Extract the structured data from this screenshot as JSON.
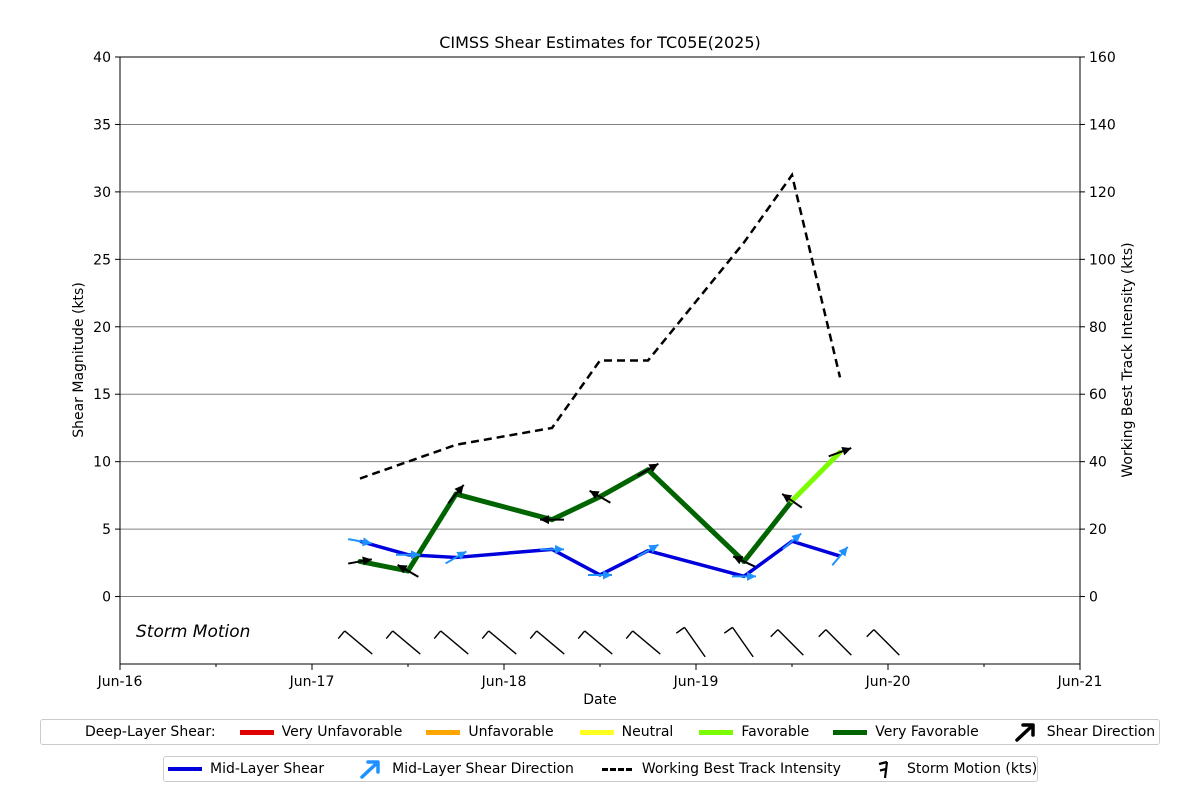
{
  "chart_data": {
    "type": "line",
    "title": "CIMSS Shear Estimates for TC05E(2025)",
    "xlabel": "Date",
    "ylabel": "Shear Magnitude (kts)",
    "y2label": "Working Best Track Intensity (kts)",
    "x_ticks": [
      "Jun-16",
      "Jun-17",
      "Jun-18",
      "Jun-19",
      "Jun-20",
      "Jun-21"
    ],
    "x_range": [
      "Jun-16",
      "Jun-21"
    ],
    "ylim": [
      -5,
      40
    ],
    "y_ticks": [
      0,
      5,
      10,
      15,
      20,
      25,
      30,
      35,
      40
    ],
    "y2lim": [
      -20,
      160
    ],
    "y2_ticks": [
      0,
      20,
      40,
      60,
      80,
      100,
      120,
      140,
      160
    ],
    "grid": "horizontal",
    "annotation": "Storm Motion",
    "times": [
      "Jun-17 06",
      "Jun-17 12",
      "Jun-17 18",
      "Jun-18 06",
      "Jun-18 12",
      "Jun-18 18",
      "Jun-19 06",
      "Jun-19 12",
      "Jun-19 18"
    ],
    "series": [
      {
        "name": "Deep-Layer Shear",
        "values": [
          2.6,
          1.9,
          7.6,
          5.7,
          7.4,
          9.4,
          2.6,
          7.1,
          10.7
        ],
        "segment_ratings": [
          "Very Favorable",
          "Very Favorable",
          "Very Favorable",
          "Very Favorable",
          "Very Favorable",
          "Very Favorable",
          "Very Favorable",
          "Favorable"
        ],
        "direction_deg": [
          80,
          300,
          40,
          270,
          300,
          60,
          295,
          305,
          70
        ]
      },
      {
        "name": "Mid-Layer Shear",
        "values": [
          4.1,
          3.1,
          2.9,
          3.5,
          1.6,
          3.4,
          1.5,
          4.1,
          3.0
        ],
        "direction_deg": [
          100,
          90,
          60,
          90,
          90,
          60,
          90,
          50,
          40
        ]
      },
      {
        "name": "Working Best Track Intensity",
        "axis": "right",
        "x": [
          "Jun-17 06",
          "Jun-17 18",
          "Jun-18 06",
          "Jun-18 12",
          "Jun-18 18",
          "Jun-19 06",
          "Jun-19 12",
          "Jun-19 18"
        ],
        "values": [
          35,
          45,
          50,
          70,
          70,
          105,
          125,
          65
        ]
      },
      {
        "name": "Storm Motion (kts)",
        "x": [
          "Jun-17 06",
          "Jun-17 12",
          "Jun-17 18",
          "Jun-18",
          "Jun-18 06",
          "Jun-18 12",
          "Jun-18 18",
          "Jun-19",
          "Jun-19 06",
          "Jun-19 12",
          "Jun-19 18",
          "Jun-20"
        ],
        "direction_deg": [
          310,
          310,
          310,
          310,
          310,
          310,
          310,
          325,
          325,
          315,
          315,
          315
        ],
        "speed_kts": [
          10,
          10,
          10,
          10,
          10,
          10,
          10,
          10,
          10,
          10,
          10,
          10
        ]
      }
    ]
  },
  "colors": {
    "very_unfavorable": "#e00000",
    "unfavorable": "#ffa500",
    "neutral": "#ffff22",
    "favorable": "#7cfc00",
    "very_favorable": "#006400",
    "mid_layer": "#0000dd",
    "mid_arrow": "#1e90ff",
    "intensity": "#000000",
    "grid": "#808080"
  },
  "legend": {
    "deep_layer_label": "Deep-Layer Shear:",
    "very_unfavorable": "Very Unfavorable",
    "unfavorable": "Unfavorable",
    "neutral": "Neutral",
    "favorable": "Favorable",
    "very_favorable": "Very Favorable",
    "shear_direction": "Shear Direction",
    "mid_layer_shear": "Mid-Layer Shear",
    "mid_layer_direction": "Mid-Layer Shear Direction",
    "best_track": "Working Best Track Intensity",
    "storm_motion": "Storm Motion (kts)",
    "shear_direction_icon": "black-arrow-icon",
    "mid_layer_direction_icon": "blue-arrow-icon",
    "storm_motion_icon": "wind-barb-icon"
  }
}
